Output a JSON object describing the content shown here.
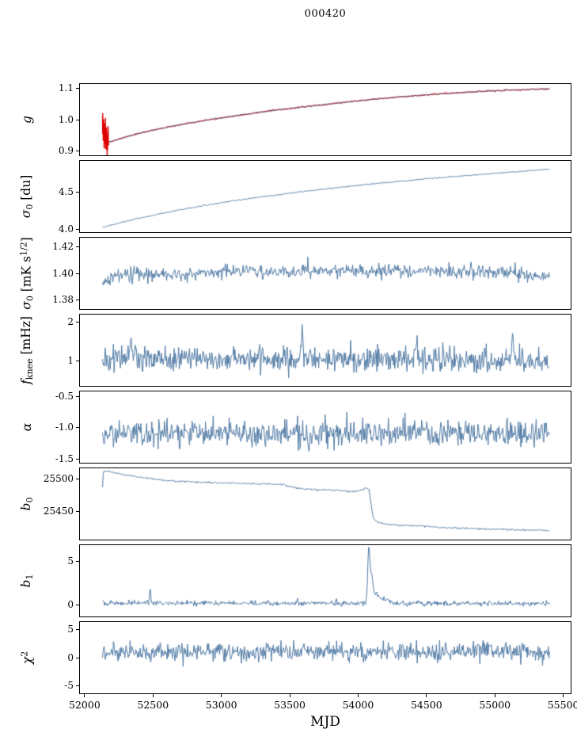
{
  "title": "000420",
  "colors": {
    "line": "#527ba5",
    "overlay": "#d62020",
    "axis": "#000000",
    "background": "#ffffff"
  },
  "x_axis": {
    "label": "MJD",
    "range": [
      51960,
      55560
    ],
    "data_range": [
      52131,
      55400
    ],
    "ticks": [
      52000,
      52500,
      53000,
      53500,
      54000,
      54500,
      55000,
      55500
    ]
  },
  "chart_data": [
    {
      "name": "g",
      "type": "line",
      "ylabel": [
        {
          "t": "g",
          "i": true
        }
      ],
      "ylim": [
        0.885,
        1.115
      ],
      "yticks": [
        {
          "v": 0.9,
          "label": "0.9"
        },
        {
          "v": 1.0,
          "label": "1.0"
        },
        {
          "v": 1.1,
          "label": "1.1"
        }
      ],
      "series": [
        {
          "name": "g-gain-model",
          "color": "#527ba5",
          "width": 1.3,
          "seed": 11,
          "samples": 600,
          "noise": 0.0008,
          "keypoints": [
            [
              52131,
              0.99
            ],
            [
              52140,
              0.945
            ],
            [
              52152,
              0.93
            ],
            [
              52170,
              0.9275
            ],
            [
              52200,
              0.93
            ],
            [
              52300,
              0.944
            ],
            [
              52400,
              0.956
            ],
            [
              52500,
              0.966
            ],
            [
              52700,
              0.984
            ],
            [
              52900,
              0.999
            ],
            [
              53100,
              1.012
            ],
            [
              53300,
              1.025
            ],
            [
              53500,
              1.036
            ],
            [
              53700,
              1.046
            ],
            [
              53900,
              1.056
            ],
            [
              54100,
              1.065
            ],
            [
              54300,
              1.073
            ],
            [
              54500,
              1.08
            ],
            [
              54700,
              1.086
            ],
            [
              54900,
              1.091
            ],
            [
              55100,
              1.095
            ],
            [
              55250,
              1.0975
            ],
            [
              55400,
              1.099
            ]
          ]
        },
        {
          "name": "g-gain-raw",
          "color": "#d62020",
          "width": 0.9,
          "seed": 23,
          "samples": 600,
          "noise": 0.0014,
          "keypoints": [
            [
              52131,
              0.99
            ],
            [
              52140,
              0.945
            ],
            [
              52152,
              0.93
            ],
            [
              52170,
              0.9275
            ],
            [
              52200,
              0.93
            ],
            [
              52300,
              0.944
            ],
            [
              52400,
              0.956
            ],
            [
              52500,
              0.966
            ],
            [
              52700,
              0.984
            ],
            [
              52900,
              0.999
            ],
            [
              53100,
              1.012
            ],
            [
              53300,
              1.025
            ],
            [
              53500,
              1.036
            ],
            [
              53700,
              1.046
            ],
            [
              53900,
              1.056
            ],
            [
              54100,
              1.065
            ],
            [
              54300,
              1.073
            ],
            [
              54500,
              1.08
            ],
            [
              54700,
              1.086
            ],
            [
              54900,
              1.091
            ],
            [
              55100,
              1.095
            ],
            [
              55250,
              1.0975
            ],
            [
              55400,
              1.099
            ]
          ]
        },
        {
          "name": "g-start-transient",
          "color": "#dd0000",
          "width": 1.4,
          "seed": 37,
          "samples": 90,
          "noise": 0.02,
          "xspan": [
            52131,
            52175
          ],
          "keypoints": [
            [
              52131,
              0.988
            ],
            [
              52145,
              0.952
            ],
            [
              52160,
              0.94
            ],
            [
              52175,
              0.931
            ]
          ]
        }
      ]
    },
    {
      "name": "sigma0-du",
      "type": "line",
      "ylabel": [
        {
          "t": "σ",
          "i": true
        },
        {
          "t": "0",
          "sub": true
        },
        {
          "t": " [du]"
        }
      ],
      "ylim": [
        3.96,
        4.93
      ],
      "yticks": [
        {
          "v": 4.0,
          "label": "4.0"
        },
        {
          "v": 4.5,
          "label": "4.5"
        }
      ],
      "series": [
        {
          "name": "sigma0-du",
          "color": "#527ba5",
          "width": 1,
          "seed": 51,
          "samples": 600,
          "noise": 0.004,
          "keypoints": [
            [
              52131,
              4.02
            ],
            [
              52200,
              4.06
            ],
            [
              52300,
              4.105
            ],
            [
              52400,
              4.15
            ],
            [
              52500,
              4.19
            ],
            [
              52700,
              4.265
            ],
            [
              52900,
              4.33
            ],
            [
              53100,
              4.39
            ],
            [
              53300,
              4.44
            ],
            [
              53500,
              4.49
            ],
            [
              53700,
              4.535
            ],
            [
              53900,
              4.575
            ],
            [
              54100,
              4.615
            ],
            [
              54300,
              4.65
            ],
            [
              54500,
              4.685
            ],
            [
              54700,
              4.715
            ],
            [
              54900,
              4.745
            ],
            [
              55100,
              4.775
            ],
            [
              55250,
              4.795
            ],
            [
              55400,
              4.815
            ]
          ]
        }
      ]
    },
    {
      "name": "sigma0-mk",
      "type": "line",
      "ylabel": [
        {
          "t": "σ",
          "i": true
        },
        {
          "t": "0",
          "sub": true
        },
        {
          "t": " [mK s"
        },
        {
          "t": "1/2",
          "sup": true
        },
        {
          "t": "]"
        }
      ],
      "ylim": [
        1.373,
        1.427
      ],
      "yticks": [
        {
          "v": 1.38,
          "label": "1.38"
        },
        {
          "v": 1.4,
          "label": "1.40"
        },
        {
          "v": 1.42,
          "label": "1.42"
        }
      ],
      "series": [
        {
          "name": "sigma0-mk",
          "color": "#527ba5",
          "width": 1,
          "seed": 67,
          "samples": 650,
          "noise": 0.0026,
          "keypoints": [
            [
              52131,
              1.3935
            ],
            [
              52200,
              1.3975
            ],
            [
              52400,
              1.399
            ],
            [
              52700,
              1.3995
            ],
            [
              53000,
              1.401
            ],
            [
              53400,
              1.402
            ],
            [
              53800,
              1.4015
            ],
            [
              54200,
              1.402
            ],
            [
              54600,
              1.4015
            ],
            [
              55000,
              1.401
            ],
            [
              55200,
              1.3995
            ],
            [
              55400,
              1.3985
            ]
          ]
        }
      ]
    },
    {
      "name": "fknee",
      "type": "line",
      "ylabel": [
        {
          "t": "f",
          "i": true
        },
        {
          "t": "knee",
          "sub": true
        },
        {
          "t": " [mHz]"
        }
      ],
      "ylim": [
        0.35,
        2.2
      ],
      "yticks": [
        {
          "v": 1,
          "label": "1"
        },
        {
          "v": 2,
          "label": "2"
        }
      ],
      "series": [
        {
          "name": "fknee",
          "color": "#527ba5",
          "width": 1,
          "seed": 83,
          "samples": 700,
          "noise": 0.17,
          "keypoints": [
            [
              52131,
              1.05
            ],
            [
              55400,
              1.03
            ]
          ],
          "spikes": [
            {
              "x": 52340,
              "h": 0.9,
              "w": 5
            },
            {
              "x": 53590,
              "h": 0.85,
              "w": 5
            },
            {
              "x": 54430,
              "h": 0.75,
              "w": 5
            },
            {
              "x": 55130,
              "h": 0.6,
              "w": 4
            }
          ]
        }
      ]
    },
    {
      "name": "alpha",
      "type": "line",
      "ylabel": [
        {
          "t": "α",
          "i": true
        }
      ],
      "ylim": [
        -1.56,
        -0.42
      ],
      "yticks": [
        {
          "v": -0.5,
          "label": "-0.5"
        },
        {
          "v": -1.0,
          "label": "-1.0"
        },
        {
          "v": -1.5,
          "label": "-1.5"
        }
      ],
      "series": [
        {
          "name": "alpha",
          "color": "#527ba5",
          "width": 1,
          "seed": 97,
          "samples": 700,
          "noise": 0.105,
          "keypoints": [
            [
              52131,
              -1.1
            ],
            [
              55400,
              -1.09
            ]
          ],
          "spikes": [
            {
              "x": 53640,
              "h": -0.33,
              "w": 4
            }
          ]
        }
      ]
    },
    {
      "name": "b0",
      "type": "line",
      "ylabel": [
        {
          "t": "b",
          "i": true
        },
        {
          "t": "0",
          "sub": true
        }
      ],
      "ylim": [
        25406,
        25516
      ],
      "yticks": [
        {
          "v": 25450,
          "label": "25450"
        },
        {
          "v": 25500,
          "label": "25500"
        }
      ],
      "series": [
        {
          "name": "b0",
          "color": "#527ba5",
          "width": 1,
          "seed": 113,
          "samples": 650,
          "noise": 0.7,
          "keypoints": [
            [
              52131,
              25487
            ],
            [
              52137,
              25511
            ],
            [
              52160,
              25512
            ],
            [
              52250,
              25508
            ],
            [
              52350,
              25504
            ],
            [
              52450,
              25501
            ],
            [
              52550,
              25498
            ],
            [
              52700,
              25496
            ],
            [
              52900,
              25494
            ],
            [
              53100,
              25493
            ],
            [
              53300,
              25492
            ],
            [
              53450,
              25491
            ],
            [
              53520,
              25487
            ],
            [
              53600,
              25484
            ],
            [
              53750,
              25483
            ],
            [
              53900,
              25481
            ],
            [
              53980,
              25480
            ],
            [
              54020,
              25482
            ],
            [
              54060,
              25486
            ],
            [
              54080,
              25483
            ],
            [
              54095,
              25460
            ],
            [
              54110,
              25440
            ],
            [
              54140,
              25433
            ],
            [
              54200,
              25430
            ],
            [
              54300,
              25428
            ],
            [
              54450,
              25427
            ],
            [
              54600,
              25425
            ],
            [
              54800,
              25423
            ],
            [
              55000,
              25422
            ],
            [
              55200,
              25421
            ],
            [
              55400,
              25420
            ]
          ]
        }
      ]
    },
    {
      "name": "b1",
      "type": "line",
      "ylabel": [
        {
          "t": "b",
          "i": true
        },
        {
          "t": "1",
          "sub": true
        }
      ],
      "ylim": [
        -1.3,
        6.8
      ],
      "yticks": [
        {
          "v": 0,
          "label": "0"
        },
        {
          "v": 5,
          "label": "5"
        }
      ],
      "series": [
        {
          "name": "b1",
          "color": "#527ba5",
          "width": 1,
          "seed": 131,
          "samples": 700,
          "noise": 0.14,
          "keypoints": [
            [
              52131,
              0.22
            ],
            [
              55400,
              0.18
            ]
          ],
          "spikes": [
            {
              "x": 52480,
              "h": 1.9,
              "w": 4
            },
            {
              "x": 53555,
              "h": 0.6,
              "w": 4
            },
            {
              "x": 53840,
              "h": 0.5,
              "w": 3
            },
            {
              "x": 54078,
              "h": 6.2,
              "w": 8
            },
            {
              "x": 54100,
              "h": 3.0,
              "w": 10
            },
            {
              "x": 54135,
              "h": 1.1,
              "w": 18
            },
            {
              "x": 54200,
              "h": 0.45,
              "w": 30
            }
          ]
        }
      ]
    },
    {
      "name": "chi2",
      "type": "line",
      "ylabel": [
        {
          "t": "χ",
          "i": true
        },
        {
          "t": "2",
          "sup": true
        }
      ],
      "ylim": [
        -6.3,
        6.3
      ],
      "yticks": [
        {
          "v": -5,
          "label": "-5"
        },
        {
          "v": 0,
          "label": "0"
        },
        {
          "v": 5,
          "label": "5"
        }
      ],
      "series": [
        {
          "name": "chi2",
          "color": "#527ba5",
          "width": 1,
          "seed": 149,
          "samples": 700,
          "noise": 0.8,
          "keypoints": [
            [
              52131,
              0.95
            ],
            [
              55400,
              1.0
            ]
          ]
        }
      ]
    }
  ]
}
